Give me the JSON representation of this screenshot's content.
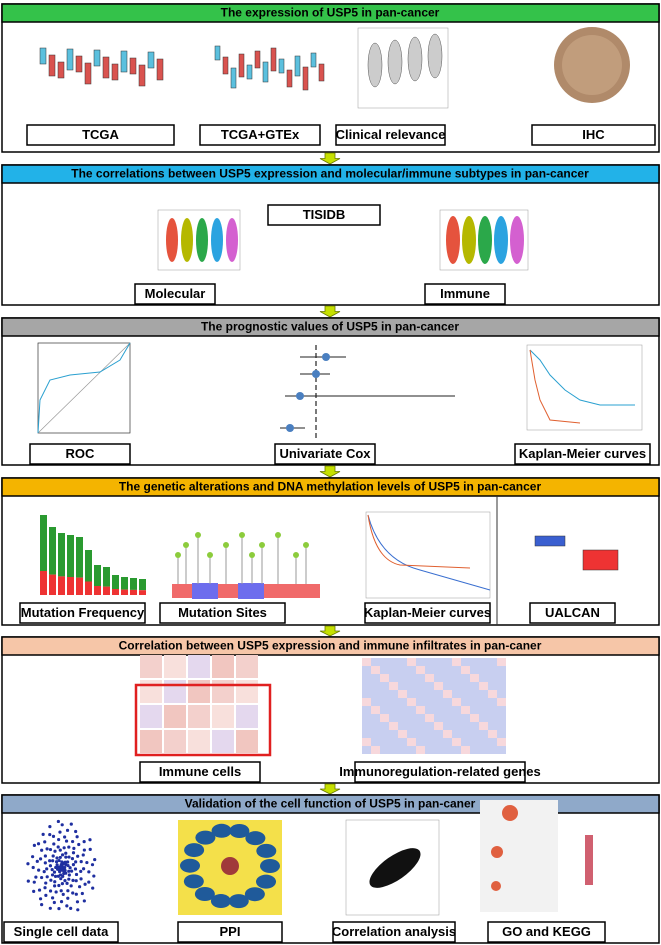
{
  "sections": [
    {
      "title": "The expression of USP5 in pan-cancer",
      "color": "#34c24a",
      "panels": [
        {
          "label": "TCGA"
        },
        {
          "label": "TCGA+GTEx"
        },
        {
          "label": "Clinical relevance"
        },
        {
          "label": "IHC"
        }
      ]
    },
    {
      "title": "The correlations between USP5 expression and molecular/immune subtypes in pan-cancer",
      "color": "#22b2e8",
      "panels": [
        {
          "label": "Molecular"
        },
        {
          "label": "Immune"
        },
        {
          "label": "TISIDB"
        }
      ]
    },
    {
      "title": "The prognostic values of USP5 in pan-cancer",
      "color": "#a6a6a6",
      "panels": [
        {
          "label": "ROC"
        },
        {
          "label": "Univariate Cox"
        },
        {
          "label": "Kaplan-Meier curves"
        }
      ]
    },
    {
      "title": "The genetic alterations and DNA methylation levels of USP5 in pan-cancer",
      "color": "#f4b400",
      "panels": [
        {
          "label": "Mutation Frequency"
        },
        {
          "label": "Mutation Sites"
        },
        {
          "label": "Kaplan-Meier curves"
        },
        {
          "label": "UALCAN"
        }
      ]
    },
    {
      "title": "Correlation between USP5 expression and immune infiltrates in pan-caner",
      "color": "#f6c6a8",
      "panels": [
        {
          "label": "Immune cells"
        },
        {
          "label": "Immunoregulation-related genes"
        }
      ]
    },
    {
      "title": "Validation of the cell function of USP5 in pan-caner",
      "color": "#8fa9c9",
      "panels": [
        {
          "label": "Single cell data"
        },
        {
          "label": "PPI"
        },
        {
          "label": "Correlation analysis"
        },
        {
          "label": "GO and KEGG"
        }
      ]
    }
  ]
}
